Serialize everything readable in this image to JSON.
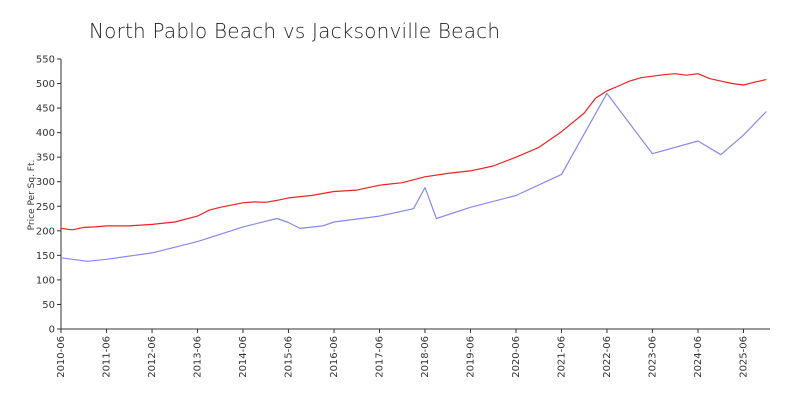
{
  "chart_data": {
    "type": "line",
    "title": "North Pablo Beach vs Jacksonville Beach",
    "xlabel": "",
    "ylabel": "Price Per Sq. Ft.",
    "ylim": [
      0,
      550
    ],
    "yticks": [
      0,
      50,
      100,
      150,
      200,
      250,
      300,
      350,
      400,
      450,
      500,
      550
    ],
    "xticks": [
      "2010-06",
      "2011-06",
      "2012-06",
      "2013-06",
      "2014-06",
      "2015-06",
      "2016-06",
      "2017-06",
      "2018-06",
      "2019-06",
      "2020-06",
      "2021-06",
      "2022-06",
      "2023-06",
      "2024-06",
      "2025-06"
    ],
    "legend": "none",
    "grid": false,
    "series": [
      {
        "color": "#ee2222",
        "points": [
          [
            "2010-06",
            205
          ],
          [
            "2010-09",
            202
          ],
          [
            "2010-12",
            207
          ],
          [
            "2011-03",
            208
          ],
          [
            "2011-06",
            210
          ],
          [
            "2011-12",
            210
          ],
          [
            "2012-06",
            213
          ],
          [
            "2012-12",
            218
          ],
          [
            "2013-06",
            230
          ],
          [
            "2013-09",
            242
          ],
          [
            "2013-12",
            248
          ],
          [
            "2014-06",
            257
          ],
          [
            "2014-09",
            259
          ],
          [
            "2014-12",
            258
          ],
          [
            "2015-03",
            262
          ],
          [
            "2015-06",
            267
          ],
          [
            "2015-12",
            272
          ],
          [
            "2016-06",
            280
          ],
          [
            "2016-12",
            283
          ],
          [
            "2017-06",
            293
          ],
          [
            "2017-12",
            298
          ],
          [
            "2018-06",
            310
          ],
          [
            "2018-12",
            317
          ],
          [
            "2019-06",
            322
          ],
          [
            "2019-12",
            332
          ],
          [
            "2020-06",
            350
          ],
          [
            "2020-12",
            370
          ],
          [
            "2021-06",
            402
          ],
          [
            "2021-12",
            440
          ],
          [
            "2022-03",
            470
          ],
          [
            "2022-06",
            485
          ],
          [
            "2022-09",
            495
          ],
          [
            "2022-12",
            505
          ],
          [
            "2023-03",
            512
          ],
          [
            "2023-06",
            515
          ],
          [
            "2023-09",
            518
          ],
          [
            "2023-12",
            520
          ],
          [
            "2024-03",
            517
          ],
          [
            "2024-06",
            520
          ],
          [
            "2024-09",
            510
          ],
          [
            "2024-12",
            505
          ],
          [
            "2025-03",
            500
          ],
          [
            "2025-06",
            497
          ],
          [
            "2025-09",
            503
          ],
          [
            "2025-12",
            508
          ]
        ]
      },
      {
        "color": "#8888ee",
        "points": [
          [
            "2010-06",
            145
          ],
          [
            "2011-01",
            138
          ],
          [
            "2011-06",
            142
          ],
          [
            "2012-06",
            155
          ],
          [
            "2013-06",
            178
          ],
          [
            "2014-06",
            208
          ],
          [
            "2015-03",
            225
          ],
          [
            "2015-06",
            217
          ],
          [
            "2015-09",
            205
          ],
          [
            "2016-03",
            210
          ],
          [
            "2016-06",
            218
          ],
          [
            "2017-06",
            230
          ],
          [
            "2018-03",
            245
          ],
          [
            "2018-06",
            288
          ],
          [
            "2018-09",
            225
          ],
          [
            "2019-06",
            248
          ],
          [
            "2020-06",
            272
          ],
          [
            "2021-06",
            315
          ],
          [
            "2022-06",
            480
          ],
          [
            "2023-06",
            357
          ],
          [
            "2024-06",
            383
          ],
          [
            "2024-12",
            355
          ],
          [
            "2025-06",
            395
          ],
          [
            "2025-12",
            443
          ]
        ]
      }
    ]
  }
}
